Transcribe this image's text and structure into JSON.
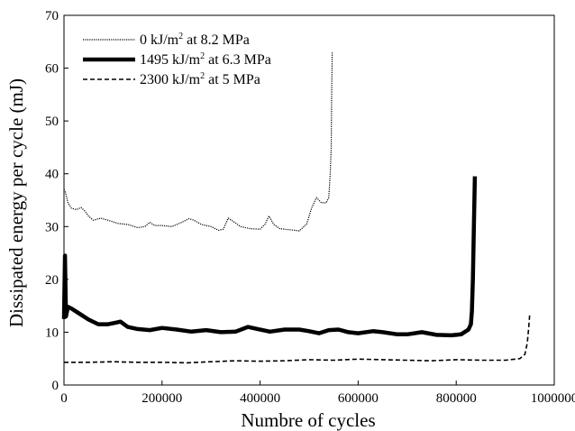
{
  "chart_data": {
    "type": "line",
    "xlabel": "Numbre of cycles",
    "ylabel": "Dissipated energy per cycle (mJ)",
    "xlim": [
      0,
      1000000
    ],
    "ylim": [
      0,
      70
    ],
    "xticks": [
      0,
      200000,
      400000,
      600000,
      800000,
      1000000
    ],
    "yticks": [
      0,
      10,
      20,
      30,
      40,
      50,
      60,
      70
    ],
    "grid": false,
    "legend_position": "top-left",
    "series": [
      {
        "name": "0 kJ/m2  at 8.2 MPa",
        "legend_parts": [
          "0 kJ/m",
          "2",
          "  at 8.2 MPa"
        ],
        "style": "dotted",
        "x": [
          0,
          3000,
          8000,
          15000,
          25000,
          35000,
          42000,
          50000,
          60000,
          75000,
          90000,
          110000,
          130000,
          150000,
          165000,
          175000,
          185000,
          200000,
          220000,
          240000,
          255000,
          265000,
          280000,
          300000,
          315000,
          325000,
          335000,
          345000,
          360000,
          380000,
          400000,
          410000,
          418000,
          428000,
          440000,
          460000,
          480000,
          495000,
          505000,
          515000,
          525000,
          535000,
          540000,
          543000,
          545000,
          546000,
          547000
        ],
        "y": [
          37.0,
          36.5,
          34.5,
          33.5,
          33.2,
          33.6,
          33.0,
          32.0,
          31.2,
          31.6,
          31.2,
          30.6,
          30.4,
          29.8,
          30.0,
          30.8,
          30.2,
          30.2,
          30.0,
          30.8,
          31.5,
          31.2,
          30.4,
          30.0,
          29.3,
          29.5,
          31.6,
          31.0,
          30.0,
          29.6,
          29.5,
          30.4,
          32.0,
          30.4,
          29.6,
          29.4,
          29.2,
          30.5,
          33.5,
          35.5,
          34.5,
          34.5,
          35.5,
          40.0,
          45.0,
          55.0,
          63.0
        ]
      },
      {
        "name": "1495 kJ/m2 at 6.3 MPa",
        "legend_parts": [
          "1495 kJ/m",
          "2",
          " at 6.3 MPa"
        ],
        "style": "solid-thick",
        "x": [
          0,
          2000,
          4000,
          8000,
          15000,
          30000,
          50000,
          70000,
          90000,
          105000,
          115000,
          130000,
          150000,
          175000,
          200000,
          230000,
          260000,
          290000,
          320000,
          350000,
          375000,
          395000,
          420000,
          450000,
          480000,
          500000,
          520000,
          540000,
          560000,
          580000,
          600000,
          630000,
          650000,
          680000,
          700000,
          730000,
          760000,
          790000,
          810000,
          825000,
          830000,
          832000,
          834000,
          836000,
          838000
        ],
        "y": [
          12.5,
          24.5,
          13.0,
          14.8,
          14.5,
          13.6,
          12.4,
          11.5,
          11.5,
          11.8,
          12.0,
          11.0,
          10.6,
          10.4,
          10.8,
          10.5,
          10.1,
          10.4,
          10.0,
          10.1,
          11.0,
          10.6,
          10.1,
          10.5,
          10.5,
          10.2,
          9.8,
          10.4,
          10.5,
          10.0,
          9.8,
          10.2,
          10.0,
          9.6,
          9.6,
          10.0,
          9.5,
          9.4,
          9.6,
          10.5,
          11.5,
          14.0,
          20.0,
          30.0,
          39.5
        ]
      },
      {
        "name": "2300 kJ/m2 at 5 MPa",
        "legend_parts": [
          "2300 kJ/m",
          "2",
          " at 5 MPa"
        ],
        "style": "dashed",
        "x": [
          0,
          50000,
          100000,
          150000,
          200000,
          250000,
          300000,
          350000,
          400000,
          450000,
          500000,
          550000,
          600000,
          650000,
          700000,
          750000,
          800000,
          850000,
          900000,
          930000,
          940000,
          945000,
          948000,
          950000
        ],
        "y": [
          4.3,
          4.3,
          4.4,
          4.3,
          4.3,
          4.2,
          4.4,
          4.6,
          4.5,
          4.6,
          4.8,
          4.7,
          4.9,
          4.8,
          4.7,
          4.6,
          4.8,
          4.7,
          4.7,
          5.0,
          5.8,
          8.0,
          11.0,
          13.5
        ]
      }
    ]
  }
}
